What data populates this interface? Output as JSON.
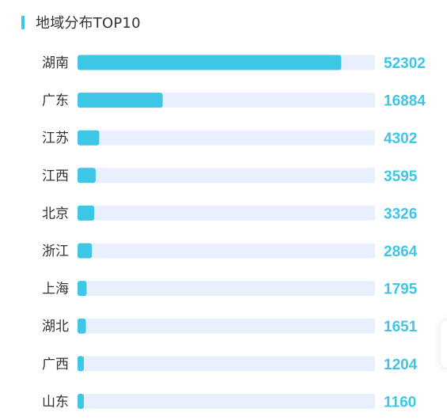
{
  "header": {
    "title": "地域分布TOP10"
  },
  "colors": {
    "accent": "#3ec6e6",
    "track": "#e8f0fe",
    "value_text": "#3ec6e6",
    "label_text": "#333333"
  },
  "chart_data": {
    "type": "bar",
    "orientation": "horizontal",
    "title": "地域分布TOP10",
    "xlabel": "",
    "ylabel": "",
    "categories": [
      "湖南",
      "广东",
      "江苏",
      "江西",
      "北京",
      "浙江",
      "上海",
      "湖北",
      "广西",
      "山东"
    ],
    "values": [
      52302,
      16884,
      4302,
      3595,
      3326,
      2864,
      1795,
      1651,
      1204,
      1160
    ],
    "xlim": [
      0,
      59000
    ],
    "grid": false,
    "legend": "none"
  }
}
